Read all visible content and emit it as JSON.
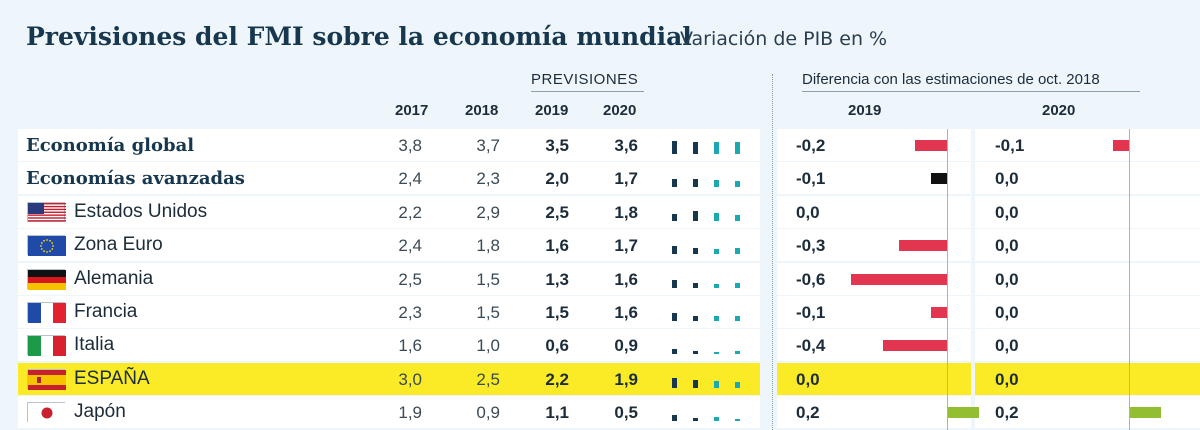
{
  "header": {
    "title": "Previsiones del FMI sobre la economía mundial",
    "subtitle": "Variación de PIB en %",
    "previsiones": "PREVISIONES",
    "diff_title": "Diferencia con las estimaciones de oct. 2018"
  },
  "columns": {
    "y2017": "2017",
    "y2018": "2018",
    "y2019": "2019",
    "y2020": "2020",
    "d2019": "2019",
    "d2020": "2020"
  },
  "colors": {
    "negative": "#e23550",
    "positive": "#94be32",
    "neutral": "#111111",
    "spark_dark": "#17374f",
    "spark_teal": "#1aa9b3",
    "highlight": "#faeb26"
  },
  "chart_data": {
    "type": "table",
    "title": "Previsiones del FMI sobre la economía mundial",
    "unit": "Variación de PIB en %",
    "rows": [
      {
        "name": "Economía global",
        "flag": "",
        "bold": true,
        "v2017": "3,8",
        "v2018": "3,7",
        "v2019": "3,5",
        "v2020": "3,6",
        "d2019": "-0,2",
        "d2020": "-0,1",
        "d2019_value": -0.2,
        "d2020_value": -0.1,
        "bar2019": "negative",
        "bar2020": "negative"
      },
      {
        "name": "Economías avanzadas",
        "flag": "",
        "bold": true,
        "v2017": "2,4",
        "v2018": "2,3",
        "v2019": "2,0",
        "v2020": "1,7",
        "d2019": "-0,1",
        "d2020": "0,0",
        "d2019_value": -0.1,
        "d2020_value": 0.0,
        "bar2019": "neutral",
        "bar2020": "negative"
      },
      {
        "name": "Estados Unidos",
        "flag": "us-flag-icon",
        "bold": false,
        "v2017": "2,2",
        "v2018": "2,9",
        "v2019": "2,5",
        "v2020": "1,8",
        "d2019": "0,0",
        "d2020": "0,0",
        "d2019_value": 0.0,
        "d2020_value": 0.0,
        "bar2019": "negative",
        "bar2020": "negative"
      },
      {
        "name": "Zona Euro",
        "flag": "eu-flag-icon",
        "bold": false,
        "v2017": "2,4",
        "v2018": "1,8",
        "v2019": "1,6",
        "v2020": "1,7",
        "d2019": "-0,3",
        "d2020": "0,0",
        "d2019_value": -0.3,
        "d2020_value": 0.0,
        "bar2019": "negative",
        "bar2020": "negative"
      },
      {
        "name": "Alemania",
        "flag": "germany-flag-icon",
        "bold": false,
        "v2017": "2,5",
        "v2018": "1,5",
        "v2019": "1,3",
        "v2020": "1,6",
        "d2019": "-0,6",
        "d2020": "0,0",
        "d2019_value": -0.6,
        "d2020_value": 0.0,
        "bar2019": "negative",
        "bar2020": "negative"
      },
      {
        "name": "Francia",
        "flag": "france-flag-icon",
        "bold": false,
        "v2017": "2,3",
        "v2018": "1,5",
        "v2019": "1,5",
        "v2020": "1,6",
        "d2019": "-0,1",
        "d2020": "0,0",
        "d2019_value": -0.1,
        "d2020_value": 0.0,
        "bar2019": "negative",
        "bar2020": "negative"
      },
      {
        "name": "Italia",
        "flag": "italy-flag-icon",
        "bold": false,
        "v2017": "1,6",
        "v2018": "1,0",
        "v2019": "0,6",
        "v2020": "0,9",
        "d2019": "-0,4",
        "d2020": "0,0",
        "d2019_value": -0.4,
        "d2020_value": 0.0,
        "bar2019": "negative",
        "bar2020": "negative"
      },
      {
        "name": "ESPAÑA",
        "flag": "spain-flag-icon",
        "bold": false,
        "highlight": true,
        "v2017": "3,0",
        "v2018": "2,5",
        "v2019": "2,2",
        "v2020": "1,9",
        "d2019": "0,0",
        "d2020": "0,0",
        "d2019_value": 0.0,
        "d2020_value": 0.0,
        "bar2019": "negative",
        "bar2020": "negative"
      },
      {
        "name": "Japón",
        "flag": "japan-flag-icon",
        "bold": false,
        "v2017": "1,9",
        "v2018": "0,9",
        "v2019": "1,1",
        "v2020": "0,5",
        "d2019": "0,2",
        "d2020": "0,2",
        "d2019_value": 0.2,
        "d2020_value": 0.2,
        "bar2019": "positive",
        "bar2020": "positive"
      }
    ]
  }
}
